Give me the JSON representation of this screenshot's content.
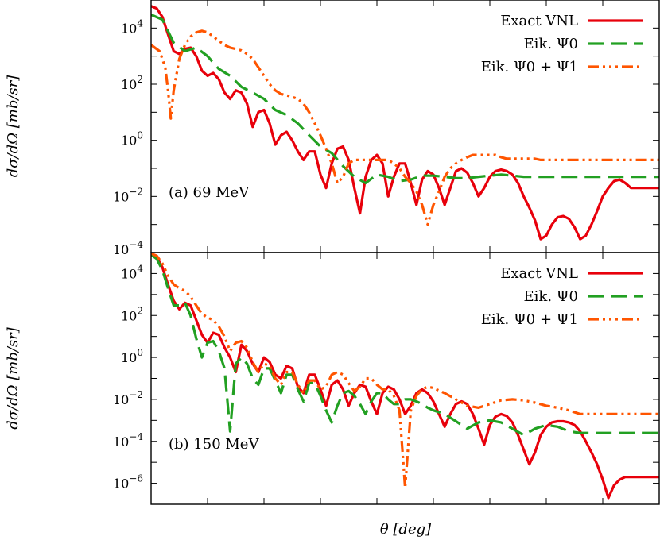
{
  "chart_data": [
    {
      "type": "line",
      "title": "",
      "annotation": "(a) 69 MeV",
      "ylabel": "dσ/dΩ [mb/sr]",
      "xlabel": "",
      "yscale": "log",
      "ylim": [
        0.0001,
        100000
      ],
      "xlim": [
        0,
        180
      ],
      "grid": false,
      "legend": "top-right",
      "yticks": [
        {
          "value": 10000,
          "base": "10",
          "exp": "4"
        },
        {
          "value": 100,
          "base": "10",
          "exp": "2"
        },
        {
          "value": 1,
          "base": "10",
          "exp": "0"
        },
        {
          "value": 0.01,
          "base": "10",
          "exp": "−2"
        },
        {
          "value": 0.0001,
          "base": "10",
          "exp": "−4"
        }
      ],
      "series": [
        {
          "name": "Exact V_NL",
          "legend_label": "Exact VNL",
          "color": "#e8000b",
          "dash": "solid",
          "x": [
            0,
            2,
            4,
            6,
            8,
            10,
            12,
            14,
            16,
            18,
            20,
            22,
            24,
            26,
            28,
            30,
            32,
            34,
            36,
            38,
            40,
            42,
            44,
            46,
            48,
            50,
            52,
            54,
            56,
            58,
            60,
            62,
            64,
            66,
            68,
            70,
            72,
            74,
            76,
            78,
            80,
            82,
            84,
            86,
            88,
            90,
            92,
            94,
            96,
            98,
            100,
            102,
            104,
            106,
            108,
            110,
            112,
            114,
            116,
            118,
            120,
            122,
            124,
            126,
            128,
            130,
            132,
            134,
            136,
            138,
            140,
            142,
            144,
            146,
            148,
            150,
            152,
            154,
            156,
            158,
            160,
            162,
            164,
            166,
            168,
            170,
            172,
            174,
            176,
            178,
            180
          ],
          "y": [
            60000,
            50000,
            25000,
            6000,
            1500,
            1200,
            1800,
            2000,
            1000,
            300,
            200,
            250,
            150,
            50,
            30,
            60,
            50,
            20,
            3,
            10,
            12,
            4,
            0.7,
            1.5,
            2,
            1,
            0.4,
            0.2,
            0.4,
            0.4,
            0.06,
            0.02,
            0.15,
            0.5,
            0.6,
            0.2,
            0.02,
            0.0025,
            0.05,
            0.2,
            0.3,
            0.15,
            0.01,
            0.05,
            0.15,
            0.15,
            0.03,
            0.005,
            0.04,
            0.08,
            0.06,
            0.02,
            0.005,
            0.02,
            0.08,
            0.1,
            0.07,
            0.03,
            0.01,
            0.02,
            0.05,
            0.08,
            0.09,
            0.08,
            0.06,
            0.03,
            0.01,
            0.004,
            0.0014,
            0.0003,
            0.0004,
            0.001,
            0.0018,
            0.002,
            0.0016,
            0.0008,
            0.0003,
            0.0004,
            0.001,
            0.003,
            0.01,
            0.02,
            0.035,
            0.04,
            0.03,
            0.02,
            0.02,
            0.02,
            0.02,
            0.02,
            0.02
          ]
        },
        {
          "name": "Eik. Ψ̂0",
          "legend_label": "Eik. Ψ0",
          "color": "#22a022",
          "dash": "20,9",
          "x": [
            0,
            4,
            8,
            12,
            16,
            20,
            24,
            28,
            32,
            36,
            40,
            44,
            48,
            52,
            56,
            60,
            64,
            68,
            72,
            76,
            80,
            84,
            88,
            92,
            96,
            100,
            104,
            108,
            112,
            116,
            120,
            124,
            128,
            132,
            136,
            140,
            144,
            148,
            152,
            156,
            160,
            164,
            168,
            172,
            176,
            180
          ],
          "y": [
            30000,
            20000,
            3000,
            1500,
            2000,
            1000,
            350,
            200,
            80,
            50,
            30,
            12,
            8,
            4,
            1.5,
            0.6,
            0.35,
            0.12,
            0.05,
            0.03,
            0.06,
            0.05,
            0.035,
            0.04,
            0.055,
            0.055,
            0.05,
            0.045,
            0.045,
            0.05,
            0.055,
            0.06,
            0.055,
            0.05,
            0.05,
            0.05,
            0.05,
            0.05,
            0.05,
            0.05,
            0.05,
            0.05,
            0.05,
            0.05,
            0.05,
            0.05
          ]
        },
        {
          "name": "Eik. Ψ̂0 + Ψ̂1",
          "legend_label": "Eik. Ψ0 + Ψ1",
          "color": "#ff5500",
          "dash": "14,5,3,5,3,5,3,5",
          "x": [
            0,
            3,
            5,
            6,
            7,
            8,
            10,
            12,
            14,
            16,
            18,
            20,
            22,
            24,
            26,
            28,
            30,
            32,
            34,
            36,
            38,
            40,
            42,
            44,
            46,
            48,
            50,
            52,
            54,
            56,
            58,
            60,
            62,
            64,
            66,
            68,
            70,
            72,
            74,
            76,
            78,
            80,
            82,
            84,
            86,
            88,
            90,
            92,
            94,
            96,
            98,
            100,
            102,
            104,
            106,
            108,
            110,
            112,
            114,
            116,
            118,
            120,
            122,
            124,
            126,
            128,
            130,
            132,
            134,
            136,
            138,
            140,
            142,
            144,
            146,
            148,
            150,
            152,
            154,
            156,
            158,
            160,
            162,
            164,
            166,
            168,
            170,
            172,
            174,
            176,
            178,
            180
          ],
          "y": [
            2500,
            1500,
            400,
            60,
            6,
            60,
            800,
            2500,
            5000,
            7000,
            8000,
            7000,
            5000,
            3500,
            2500,
            2000,
            1800,
            1600,
            1200,
            800,
            400,
            200,
            100,
            60,
            45,
            40,
            35,
            30,
            20,
            10,
            4,
            1.5,
            0.5,
            0.15,
            0.03,
            0.05,
            0.15,
            0.2,
            0.2,
            0.2,
            0.2,
            0.2,
            0.2,
            0.2,
            0.15,
            0.1,
            0.05,
            0.03,
            0.015,
            0.005,
            0.001,
            0.005,
            0.015,
            0.05,
            0.1,
            0.15,
            0.2,
            0.25,
            0.3,
            0.3,
            0.3,
            0.3,
            0.3,
            0.25,
            0.22,
            0.22,
            0.22,
            0.22,
            0.22,
            0.22,
            0.2,
            0.2,
            0.2,
            0.2,
            0.2,
            0.2,
            0.2,
            0.2,
            0.2,
            0.2,
            0.2,
            0.2,
            0.2,
            0.2,
            0.2,
            0.2,
            0.2,
            0.2,
            0.2,
            0.2,
            0.2,
            0.2
          ]
        }
      ]
    },
    {
      "type": "line",
      "title": "",
      "annotation": "(b) 150 MeV",
      "ylabel": "dσ/dΩ [mb/sr]",
      "xlabel": "θ [deg]",
      "yscale": "log",
      "ylim": [
        1e-07,
        100000
      ],
      "xlim": [
        0,
        180
      ],
      "grid": false,
      "legend": "top-right",
      "yticks": [
        {
          "value": 10000,
          "base": "10",
          "exp": "4"
        },
        {
          "value": 100,
          "base": "10",
          "exp": "2"
        },
        {
          "value": 1,
          "base": "10",
          "exp": "0"
        },
        {
          "value": 0.01,
          "base": "10",
          "exp": "−2"
        },
        {
          "value": 0.0001,
          "base": "10",
          "exp": "−4"
        },
        {
          "value": 1e-06,
          "base": "10",
          "exp": "−6"
        }
      ],
      "series": [
        {
          "name": "Exact V_NL",
          "legend_label": "Exact VNL",
          "color": "#e8000b",
          "dash": "solid",
          "x": [
            0,
            2,
            4,
            6,
            8,
            10,
            12,
            14,
            16,
            18,
            20,
            22,
            24,
            26,
            28,
            30,
            32,
            34,
            36,
            38,
            40,
            42,
            44,
            46,
            48,
            50,
            52,
            54,
            56,
            58,
            60,
            62,
            64,
            66,
            68,
            70,
            72,
            74,
            76,
            78,
            80,
            82,
            84,
            86,
            88,
            90,
            92,
            94,
            96,
            98,
            100,
            102,
            104,
            106,
            108,
            110,
            112,
            114,
            116,
            118,
            120,
            122,
            124,
            126,
            128,
            130,
            132,
            134,
            136,
            138,
            140,
            142,
            144,
            146,
            148,
            150,
            152,
            154,
            156,
            158,
            160,
            162,
            164,
            166,
            168,
            170,
            172,
            174,
            176,
            178,
            180
          ],
          "y": [
            80000,
            60000,
            20000,
            3000,
            500,
            200,
            400,
            300,
            60,
            12,
            5,
            15,
            12,
            3,
            1,
            0.2,
            4,
            2,
            0.5,
            0.2,
            1,
            0.6,
            0.15,
            0.1,
            0.4,
            0.3,
            0.04,
            0.02,
            0.15,
            0.15,
            0.03,
            0.005,
            0.05,
            0.08,
            0.03,
            0.005,
            0.02,
            0.05,
            0.04,
            0.008,
            0.002,
            0.02,
            0.04,
            0.03,
            0.01,
            0.002,
            0.005,
            0.02,
            0.03,
            0.02,
            0.008,
            0.002,
            0.0005,
            0.002,
            0.006,
            0.008,
            0.006,
            0.002,
            0.0004,
            7e-05,
            0.0006,
            0.0015,
            0.002,
            0.0016,
            0.0008,
            0.0002,
            4e-05,
            8e-06,
            3e-05,
            0.0002,
            0.0005,
            0.0008,
            0.0009,
            0.0009,
            0.0008,
            0.0006,
            0.0003,
            0.0001,
            3e-05,
            8e-06,
            1.5e-06,
            2e-07,
            8e-07,
            1.5e-06,
            2e-06,
            2e-06,
            2e-06,
            2e-06,
            2e-06,
            2e-06,
            2e-06
          ]
        },
        {
          "name": "Eik. Ψ̂0",
          "legend_label": "Eik. Ψ0",
          "color": "#22a022",
          "dash": "20,9",
          "x": [
            0,
            2,
            4,
            6,
            8,
            10,
            12,
            14,
            16,
            18,
            20,
            22,
            24,
            26,
            28,
            30,
            32,
            34,
            36,
            38,
            40,
            42,
            44,
            46,
            48,
            50,
            52,
            54,
            56,
            58,
            60,
            62,
            64,
            66,
            68,
            70,
            72,
            74,
            76,
            78,
            80,
            82,
            84,
            86,
            88,
            90,
            92,
            94,
            96,
            98,
            100,
            104,
            108,
            112,
            116,
            120,
            124,
            128,
            132,
            136,
            140,
            144,
            148,
            152,
            156,
            160,
            164,
            168,
            172,
            176,
            180
          ],
          "y": [
            80000,
            50000,
            15000,
            2000,
            300,
            300,
            400,
            100,
            8,
            1,
            5,
            6,
            2,
            0.3,
            0.0003,
            0.5,
            1,
            0.5,
            0.1,
            0.05,
            0.3,
            0.3,
            0.08,
            0.02,
            0.15,
            0.15,
            0.03,
            0.008,
            0.06,
            0.06,
            0.015,
            0.003,
            0.0008,
            0.005,
            0.02,
            0.025,
            0.015,
            0.006,
            0.002,
            0.008,
            0.02,
            0.02,
            0.01,
            0.006,
            0.006,
            0.01,
            0.01,
            0.008,
            0.006,
            0.004,
            0.003,
            0.002,
            0.0009,
            0.0004,
            0.0008,
            0.001,
            0.0008,
            0.0004,
            0.0002,
            0.0004,
            0.0006,
            0.0005,
            0.0003,
            0.00025,
            0.00025,
            0.00025,
            0.00025,
            0.00025,
            0.00025,
            0.00025,
            0.00025
          ]
        },
        {
          "name": "Eik. Ψ̂0 + Ψ̂1",
          "legend_label": "Eik. Ψ0 + Ψ1",
          "color": "#ff5500",
          "dash": "14,5,3,5,3,5,3,5",
          "x": [
            0,
            2,
            4,
            6,
            8,
            10,
            12,
            14,
            16,
            18,
            20,
            22,
            24,
            26,
            28,
            30,
            32,
            34,
            36,
            38,
            40,
            42,
            44,
            46,
            48,
            50,
            52,
            54,
            56,
            58,
            60,
            62,
            64,
            66,
            68,
            70,
            72,
            74,
            76,
            78,
            80,
            82,
            84,
            86,
            88,
            90,
            92,
            94,
            96,
            98,
            100,
            104,
            108,
            112,
            116,
            120,
            124,
            128,
            132,
            136,
            140,
            144,
            148,
            152,
            156,
            160,
            164,
            168,
            172,
            176,
            180
          ],
          "y": [
            90000,
            70000,
            30000,
            8000,
            3000,
            2000,
            1500,
            800,
            300,
            120,
            80,
            60,
            30,
            10,
            2,
            5,
            6,
            3,
            0.6,
            0.2,
            0.5,
            0.4,
            0.1,
            0.05,
            0.2,
            0.2,
            0.05,
            0.02,
            0.08,
            0.08,
            0.03,
            0.04,
            0.15,
            0.2,
            0.15,
            0.06,
            0.025,
            0.04,
            0.1,
            0.1,
            0.05,
            0.03,
            0.03,
            0.015,
            0.003,
            6e-07,
            0.003,
            0.015,
            0.03,
            0.04,
            0.035,
            0.02,
            0.01,
            0.005,
            0.004,
            0.006,
            0.009,
            0.01,
            0.009,
            0.007,
            0.005,
            0.004,
            0.003,
            0.002,
            0.002,
            0.002,
            0.002,
            0.002,
            0.002,
            0.002,
            0.002
          ]
        }
      ]
    }
  ]
}
